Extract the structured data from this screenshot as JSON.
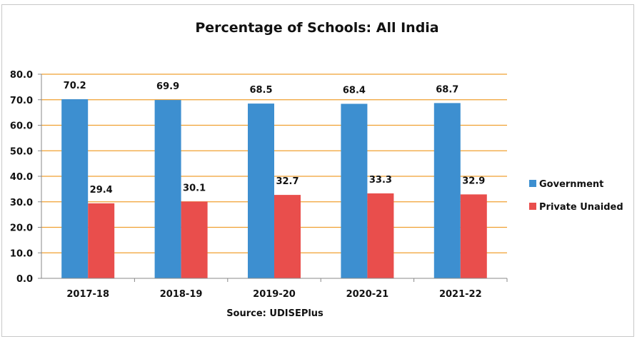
{
  "chart_data": {
    "type": "bar",
    "title": "Percentage of Schools: All India",
    "xlabel": "Source: UDISEPlus",
    "ylabel": "",
    "categories": [
      "2017-18",
      "2018-19",
      "2019-20",
      "2020-21",
      "2021-22"
    ],
    "series": [
      {
        "name": "Government",
        "values": [
          70.2,
          69.9,
          68.5,
          68.4,
          68.7
        ],
        "color": "#3d8fd0"
      },
      {
        "name": "Private Unaided",
        "values": [
          29.4,
          30.1,
          32.7,
          33.3,
          32.9
        ],
        "color": "#e94e4c"
      }
    ],
    "ylim": [
      0,
      80
    ],
    "yticks": [
      "0.0",
      "10.0",
      "20.0",
      "30.0",
      "40.0",
      "50.0",
      "60.0",
      "70.0",
      "80.0"
    ],
    "data_labels": [
      [
        "70.2",
        "69.9",
        "68.5",
        "68.4",
        "68.7"
      ],
      [
        "29.4",
        "30.1",
        "32.7",
        "33.3",
        "32.9"
      ]
    ],
    "grid": true,
    "grid_color": "#f0a030",
    "legend_position": "right"
  }
}
